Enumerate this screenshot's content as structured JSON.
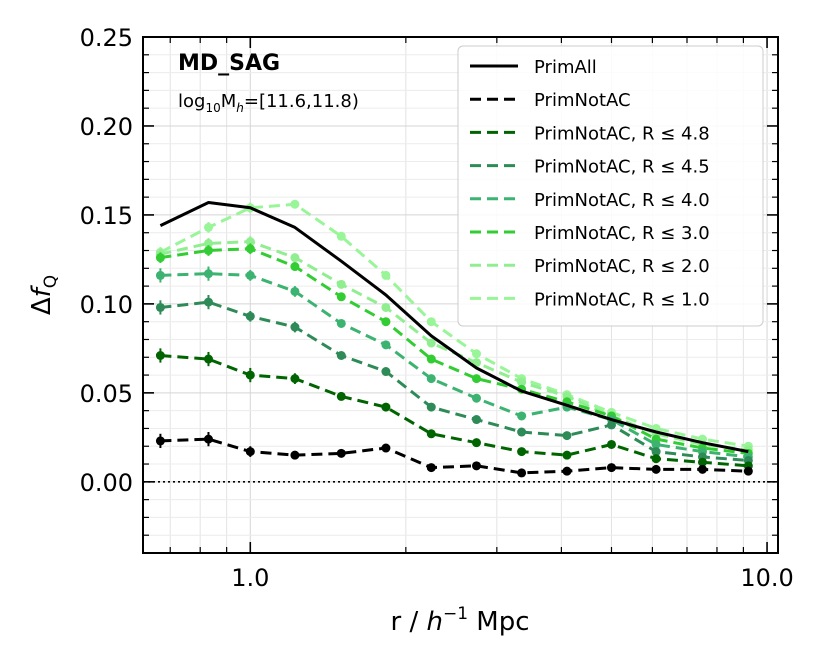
{
  "chart_data": {
    "type": "line",
    "title": "",
    "annotations": {
      "sample": "MD_SAG",
      "mass_range": {
        "prefix": "log",
        "sub": "10",
        "mid": "M",
        "sub2": "h",
        "suffix": "=[11.6,11.8)"
      }
    },
    "xlabel": {
      "main": "r / ",
      "h": "h",
      "exp": "−1",
      "unit": " Mpc"
    },
    "ylabel": {
      "delta": "Δ",
      "f": "f",
      "sub": "Q"
    },
    "xscale": "log",
    "xlim": [
      0.62,
      10.5
    ],
    "ylim": [
      -0.04,
      0.25
    ],
    "xticks": [
      {
        "value": 1.0,
        "label": "1.0"
      },
      {
        "value": 10.0,
        "label": "10.0"
      }
    ],
    "yticks": [
      {
        "value": 0.0,
        "label": "0.00"
      },
      {
        "value": 0.05,
        "label": "0.05"
      },
      {
        "value": 0.1,
        "label": "0.10"
      },
      {
        "value": 0.15,
        "label": "0.15"
      },
      {
        "value": 0.2,
        "label": "0.20"
      },
      {
        "value": 0.25,
        "label": "0.25"
      }
    ],
    "grid": true,
    "zero_line": true,
    "legend_position": "top-right",
    "x": [
      0.67,
      0.83,
      1.0,
      1.22,
      1.5,
      1.83,
      2.24,
      2.74,
      3.35,
      4.1,
      5.0,
      6.1,
      7.5,
      9.2
    ],
    "series": [
      {
        "name": "PrimAll",
        "color": "#000000",
        "dash": "solid",
        "markers": false,
        "values": [
          0.144,
          0.157,
          0.154,
          0.143,
          0.124,
          0.105,
          0.082,
          0.064,
          0.051,
          0.043,
          0.035,
          0.028,
          0.022,
          0.017
        ],
        "errors": []
      },
      {
        "name": "PrimNotAC",
        "color": "#000000",
        "dash": "dashed",
        "markers": true,
        "values": [
          0.023,
          0.024,
          0.017,
          0.015,
          0.016,
          0.019,
          0.008,
          0.009,
          0.005,
          0.006,
          0.008,
          0.007,
          0.007,
          0.006
        ],
        "errors": [
          0.004,
          0.004,
          0.003,
          0.002,
          0.002,
          0.002,
          0.0015,
          0.0015,
          0.001,
          0.001,
          0.001,
          0.001,
          0.001,
          0.001
        ]
      },
      {
        "name": "PrimNotAC, R ≤ 4.8",
        "color": "#006400",
        "dash": "dashed",
        "markers": true,
        "values": [
          0.071,
          0.069,
          0.06,
          0.058,
          0.048,
          0.042,
          0.027,
          0.022,
          0.017,
          0.015,
          0.021,
          0.013,
          0.011,
          0.009
        ],
        "errors": [
          0.004,
          0.004,
          0.004,
          0.003,
          0.002,
          0.002,
          0.002,
          0.0015,
          0.0015,
          0.001,
          0.001,
          0.001,
          0.001,
          0.001
        ]
      },
      {
        "name": "PrimNotAC, R ≤ 4.5",
        "color": "#2e8b57",
        "dash": "dashed",
        "markers": true,
        "values": [
          0.098,
          0.101,
          0.093,
          0.087,
          0.071,
          0.062,
          0.042,
          0.035,
          0.028,
          0.026,
          0.032,
          0.017,
          0.014,
          0.012
        ],
        "errors": [
          0.004,
          0.004,
          0.003,
          0.003,
          0.002,
          0.002,
          0.002,
          0.0015,
          0.0015,
          0.001,
          0.001,
          0.001,
          0.001,
          0.001
        ]
      },
      {
        "name": "PrimNotAC, R ≤ 4.0",
        "color": "#3cb371",
        "dash": "dashed",
        "markers": true,
        "values": [
          0.116,
          0.117,
          0.116,
          0.107,
          0.089,
          0.077,
          0.058,
          0.047,
          0.037,
          0.042,
          0.035,
          0.021,
          0.017,
          0.014
        ],
        "errors": [
          0.004,
          0.004,
          0.003,
          0.003,
          0.002,
          0.002,
          0.002,
          0.0015,
          0.0015,
          0.001,
          0.001,
          0.001,
          0.001,
          0.001
        ]
      },
      {
        "name": "PrimNotAC, R ≤ 3.0",
        "color": "#32cd32",
        "dash": "dashed",
        "markers": true,
        "values": [
          0.126,
          0.13,
          0.131,
          0.121,
          0.104,
          0.09,
          0.069,
          0.058,
          0.052,
          0.045,
          0.037,
          0.024,
          0.019,
          0.016
        ],
        "errors": [
          0.003,
          0.003,
          0.003,
          0.002,
          0.002,
          0.002,
          0.002,
          0.0015,
          0.0015,
          0.001,
          0.001,
          0.001,
          0.001,
          0.001
        ]
      },
      {
        "name": "PrimNotAC, R ≤ 2.0",
        "color": "#90ee90",
        "dash": "dashed",
        "markers": true,
        "values": [
          0.128,
          0.134,
          0.135,
          0.126,
          0.111,
          0.098,
          0.078,
          0.067,
          0.056,
          0.048,
          0.037,
          0.027,
          0.021,
          0.018
        ],
        "errors": [
          0.003,
          0.003,
          0.003,
          0.002,
          0.002,
          0.002,
          0.002,
          0.0015,
          0.0015,
          0.001,
          0.001,
          0.001,
          0.001,
          0.001
        ]
      },
      {
        "name": "PrimNotAC, R ≤ 1.0",
        "color": "#98f598",
        "dash": "dashed",
        "markers": true,
        "values": [
          0.129,
          0.143,
          0.154,
          0.156,
          0.138,
          0.116,
          0.09,
          0.072,
          0.058,
          0.049,
          0.039,
          0.03,
          0.024,
          0.02
        ],
        "errors": [
          0.003,
          0.003,
          0.003,
          0.002,
          0.002,
          0.002,
          0.002,
          0.0015,
          0.0015,
          0.001,
          0.001,
          0.001,
          0.001,
          0.001
        ]
      }
    ]
  }
}
